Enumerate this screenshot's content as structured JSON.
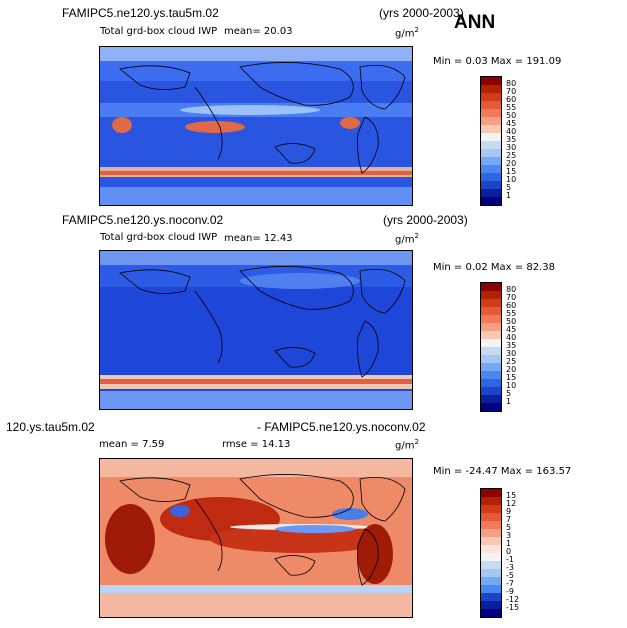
{
  "annotation": "ANN",
  "panels": [
    {
      "case_title": "FAMIPC5.ne120.ys.tau5m.02",
      "years": "(yrs 2000-2003)",
      "variable": "Total grd-box cloud IWP",
      "mean_text": "mean=  20.03",
      "units": "g/m",
      "units_sup": "2",
      "minmax": "Min =   0.03 Max = 191.09",
      "colorbar_labels": [
        "80",
        "70",
        "60",
        "55",
        "50",
        "45",
        "40",
        "35",
        "30",
        "25",
        "20",
        "15",
        "10",
        "5",
        "1"
      ],
      "colorbar_colors": [
        "#8b0000",
        "#b22200",
        "#d03b18",
        "#e45a36",
        "#ef7b5a",
        "#f5a084",
        "#f8c8b4",
        "#f4f4f4",
        "#c6dbef",
        "#a5c8f2",
        "#74a9f5",
        "#4a88f0",
        "#2d66e0",
        "#1c44c8",
        "#0a1f9a",
        "#000080"
      ],
      "field": {
        "base": "#2a55e0",
        "ocean": "#2f5fe8",
        "land": "#3a6cf0"
      }
    },
    {
      "case_title": "FAMIPC5.ne120.ys.noconv.02",
      "years": "(yrs 2000-2003)",
      "variable": "Total grd-box cloud IWP",
      "mean_text": "mean=  12.43",
      "units": "g/m",
      "units_sup": "2",
      "minmax": "Min =   0.02 Max =  82.38",
      "colorbar_labels": [
        "80",
        "70",
        "60",
        "55",
        "50",
        "45",
        "40",
        "35",
        "30",
        "25",
        "20",
        "15",
        "10",
        "5",
        "1"
      ],
      "colorbar_colors": [
        "#8b0000",
        "#b22200",
        "#d03b18",
        "#e45a36",
        "#ef7b5a",
        "#f5a084",
        "#f8c8b4",
        "#f4f4f4",
        "#c6dbef",
        "#a5c8f2",
        "#74a9f5",
        "#4a88f0",
        "#2d66e0",
        "#1c44c8",
        "#0a1f9a",
        "#000080"
      ],
      "field": {
        "base": "#1e46d8",
        "ocean": "#2450dc",
        "land": "#2c5ce6"
      }
    },
    {
      "case_title": "120.ys.tau5m.02",
      "case_title_right": "- FAMIPC5.ne120.ys.noconv.02",
      "mean_text": "mean =    7.59",
      "rmse_text": "rmse =   14.13",
      "units": "g/m",
      "units_sup": "2",
      "minmax": "Min = -24.47 Max = 163.57",
      "colorbar_labels": [
        "15",
        "12",
        "9",
        "7",
        "5",
        "3",
        "1",
        "0",
        "-1",
        "-3",
        "-5",
        "-7",
        "-9",
        "-12",
        "-15"
      ],
      "colorbar_colors": [
        "#8b0000",
        "#b22200",
        "#d03b18",
        "#e45a36",
        "#ef7b5a",
        "#f5a084",
        "#f8c8b4",
        "#fbe4d8",
        "#f4f4f4",
        "#c6dbef",
        "#a5c8f2",
        "#74a9f5",
        "#4a88f0",
        "#1c44c8",
        "#0a1f9a",
        "#000080"
      ],
      "field": {
        "base": "#e87050",
        "ocean": "#f09a7a",
        "land": "#a01a08"
      }
    }
  ]
}
